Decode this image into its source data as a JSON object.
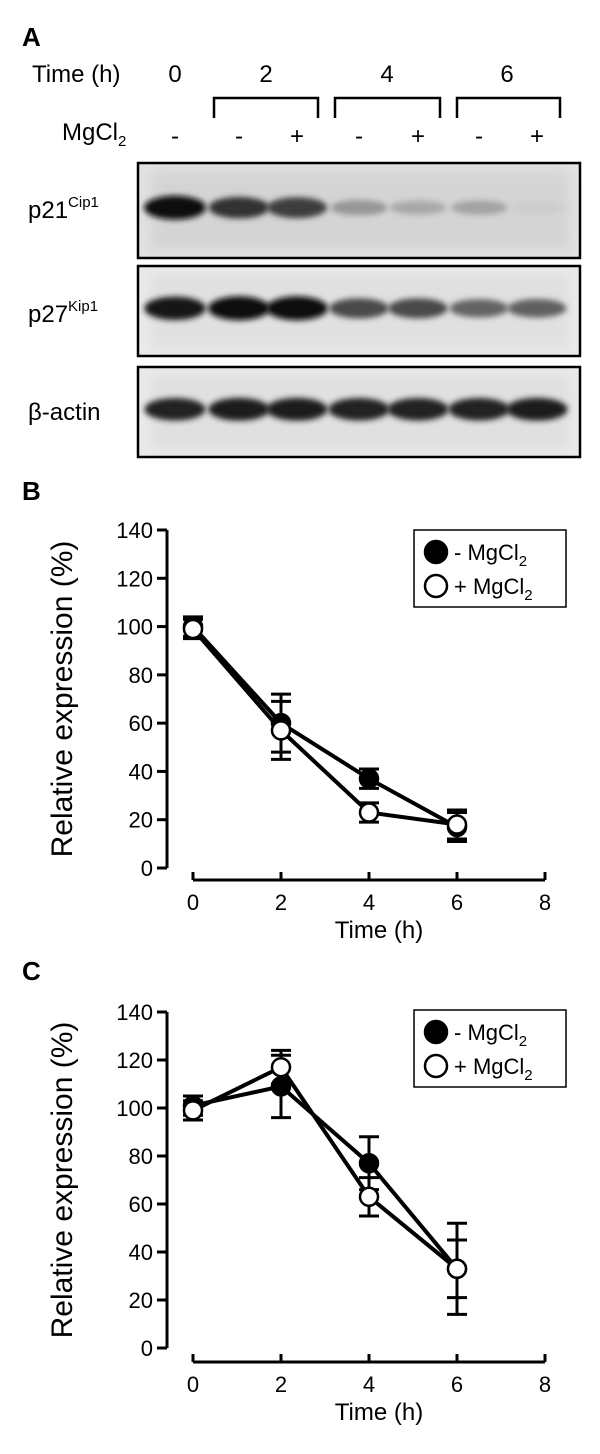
{
  "panel_a": {
    "letter": "A",
    "time_label": "Time (h)",
    "mgcl_label": "MgCl",
    "mgcl_sub": "2",
    "time_points": [
      "0",
      "2",
      "4",
      "6"
    ],
    "lane_signs": [
      "-",
      "-",
      "+",
      "-",
      "+",
      "-",
      "+"
    ],
    "blots": [
      {
        "label": "p21",
        "sup": "Cip1",
        "intensity": [
          1.0,
          0.82,
          0.78,
          0.38,
          0.3,
          0.32,
          0.14
        ]
      },
      {
        "label": "p27",
        "sup": "Kip1",
        "intensity": [
          0.95,
          1.0,
          1.0,
          0.72,
          0.72,
          0.6,
          0.62
        ]
      },
      {
        "label": "β-actin",
        "sup": "",
        "intensity": [
          0.9,
          0.92,
          0.92,
          0.9,
          0.9,
          0.9,
          0.92
        ]
      }
    ]
  },
  "chart_data": [
    {
      "type": "line",
      "letter": "B",
      "xlabel": "Time  (h)",
      "ylabel": "Relative expression  (%)",
      "xlim": [
        0,
        8
      ],
      "ylim": [
        0,
        140
      ],
      "xticks": [
        0,
        2,
        4,
        6,
        8
      ],
      "yticks": [
        0,
        20,
        40,
        60,
        80,
        100,
        120,
        140
      ],
      "legend_position": "top-right",
      "x": [
        0,
        2,
        4,
        6
      ],
      "series": [
        {
          "name": "- MgCl",
          "name_sub": "2",
          "marker": "filled-circle",
          "values": [
            100,
            60,
            37,
            17
          ],
          "errors": [
            4,
            12,
            4,
            6
          ]
        },
        {
          "name": "+ MgCl",
          "name_sub": "2",
          "marker": "open-circle",
          "values": [
            99,
            57,
            23,
            18
          ],
          "errors": [
            4,
            12,
            4,
            6
          ]
        }
      ]
    },
    {
      "type": "line",
      "letter": "C",
      "xlabel": "Time  (h)",
      "ylabel": "Relative expression  (%)",
      "xlim": [
        0,
        8
      ],
      "ylim": [
        0,
        140
      ],
      "xticks": [
        0,
        2,
        4,
        6,
        8
      ],
      "yticks": [
        0,
        20,
        40,
        60,
        80,
        100,
        120,
        140
      ],
      "legend_position": "top-right",
      "x": [
        0,
        2,
        4,
        6
      ],
      "series": [
        {
          "name": "- MgCl",
          "name_sub": "2",
          "marker": "filled-circle",
          "values": [
            101,
            109,
            77,
            33
          ],
          "errors": [
            4,
            13,
            11,
            19
          ]
        },
        {
          "name": "+ MgCl",
          "name_sub": "2",
          "marker": "open-circle",
          "values": [
            99,
            117,
            63,
            33
          ],
          "errors": [
            4,
            7,
            8,
            12
          ]
        }
      ]
    }
  ]
}
